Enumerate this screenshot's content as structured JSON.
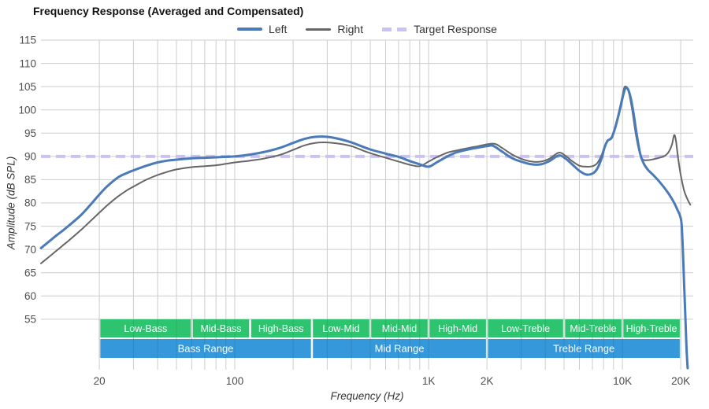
{
  "title": "Frequency Response (Averaged and Compensated)",
  "legend": {
    "items": [
      {
        "label": "Left",
        "color": "#4a7ab7",
        "style": "solid"
      },
      {
        "label": "Right",
        "color": "#666666",
        "style": "solid"
      },
      {
        "label": "Target Response",
        "color": "#c9c2f2",
        "style": "dashed"
      }
    ]
  },
  "chart_data": {
    "type": "line",
    "title": "Frequency Response (Averaged and Compensated)",
    "xlabel": "Frequency (Hz)",
    "ylabel": "Amplitude (dB SPL)",
    "x_scale": "log",
    "x_range": [
      10,
      23200
    ],
    "y_range": [
      45,
      115
    ],
    "grid": true,
    "legend_position": "top-center",
    "colors": {
      "gridline": "#cccccc",
      "tick_text": "#4d4d4d",
      "band_text": "#ffffff",
      "sub_band": "#2ec46f",
      "main_band": "#3498db",
      "target": "#c9c2f2",
      "left": "#4a7ab7",
      "right": "#666666"
    },
    "y_ticks": [
      55,
      60,
      65,
      70,
      75,
      80,
      85,
      90,
      95,
      100,
      105,
      110,
      115
    ],
    "x_ticks": [
      {
        "f": 20,
        "label": "20"
      },
      {
        "f": 100,
        "label": "100"
      },
      {
        "f": 1000,
        "label": "1K"
      },
      {
        "f": 2000,
        "label": "2K"
      },
      {
        "f": 10000,
        "label": "10K"
      },
      {
        "f": 20000,
        "label": "20K"
      }
    ],
    "x_gridlines": [
      20,
      30,
      40,
      50,
      60,
      70,
      80,
      90,
      100,
      200,
      300,
      400,
      500,
      600,
      700,
      800,
      900,
      1000,
      2000,
      3000,
      4000,
      5000,
      6000,
      7000,
      8000,
      9000,
      10000,
      20000
    ],
    "target_response_db": 90,
    "series": [
      {
        "name": "Right",
        "color": "#666666",
        "width": 2,
        "points": [
          [
            10,
            67.0
          ],
          [
            11,
            68.4
          ],
          [
            12,
            69.7
          ],
          [
            13,
            70.9
          ],
          [
            14,
            72.0
          ],
          [
            16,
            74.1
          ],
          [
            18,
            76.1
          ],
          [
            20,
            77.9
          ],
          [
            22,
            79.5
          ],
          [
            25,
            81.4
          ],
          [
            28,
            82.8
          ],
          [
            30,
            83.5
          ],
          [
            35,
            85.0
          ],
          [
            40,
            86.0
          ],
          [
            45,
            86.7
          ],
          [
            50,
            87.2
          ],
          [
            60,
            87.7
          ],
          [
            70,
            87.9
          ],
          [
            80,
            88.1
          ],
          [
            90,
            88.4
          ],
          [
            100,
            88.7
          ],
          [
            120,
            89.1
          ],
          [
            140,
            89.5
          ],
          [
            170,
            90.3
          ],
          [
            200,
            91.4
          ],
          [
            230,
            92.4
          ],
          [
            260,
            92.9
          ],
          [
            300,
            93.0
          ],
          [
            350,
            92.7
          ],
          [
            400,
            92.2
          ],
          [
            450,
            91.4
          ],
          [
            500,
            90.7
          ],
          [
            600,
            89.7
          ],
          [
            700,
            88.9
          ],
          [
            800,
            88.2
          ],
          [
            900,
            87.9
          ],
          [
            1000,
            88.9
          ],
          [
            1100,
            89.8
          ],
          [
            1250,
            90.8
          ],
          [
            1400,
            91.3
          ],
          [
            1600,
            91.8
          ],
          [
            1800,
            92.2
          ],
          [
            2000,
            92.6
          ],
          [
            2200,
            92.7
          ],
          [
            2400,
            91.8
          ],
          [
            2700,
            90.4
          ],
          [
            3000,
            89.5
          ],
          [
            3400,
            88.9
          ],
          [
            3800,
            88.9
          ],
          [
            4200,
            89.5
          ],
          [
            4700,
            90.8
          ],
          [
            5100,
            90.1
          ],
          [
            5500,
            89.0
          ],
          [
            6000,
            88.0
          ],
          [
            6500,
            87.8
          ],
          [
            7000,
            87.9
          ],
          [
            7400,
            88.5
          ],
          [
            7800,
            90.2
          ],
          [
            8100,
            92.2
          ],
          [
            8400,
            93.4
          ],
          [
            8800,
            94.2
          ],
          [
            9200,
            96.6
          ],
          [
            9700,
            100.5
          ],
          [
            10100,
            103.8
          ],
          [
            10300,
            105.0
          ],
          [
            10700,
            104.3
          ],
          [
            11200,
            100.3
          ],
          [
            11700,
            95.0
          ],
          [
            12200,
            91.2
          ],
          [
            12700,
            89.4
          ],
          [
            13500,
            89.2
          ],
          [
            14500,
            89.4
          ],
          [
            15500,
            89.7
          ],
          [
            16500,
            90.1
          ],
          [
            17300,
            90.9
          ],
          [
            18000,
            92.5
          ],
          [
            18500,
            94.6
          ],
          [
            18900,
            93.3
          ],
          [
            19400,
            89.5
          ],
          [
            20000,
            86.0
          ],
          [
            20800,
            82.7
          ],
          [
            21600,
            80.9
          ],
          [
            22400,
            79.6
          ]
        ]
      },
      {
        "name": "Left",
        "color": "#4a7ab7",
        "width": 3,
        "points": [
          [
            10,
            70.3
          ],
          [
            11,
            71.7
          ],
          [
            12,
            73.0
          ],
          [
            13,
            74.1
          ],
          [
            14,
            75.2
          ],
          [
            16,
            77.3
          ],
          [
            18,
            79.6
          ],
          [
            20,
            81.8
          ],
          [
            22,
            83.6
          ],
          [
            25,
            85.5
          ],
          [
            28,
            86.5
          ],
          [
            30,
            87.0
          ],
          [
            35,
            88.0
          ],
          [
            40,
            88.7
          ],
          [
            45,
            89.1
          ],
          [
            50,
            89.3
          ],
          [
            60,
            89.6
          ],
          [
            70,
            89.7
          ],
          [
            80,
            89.8
          ],
          [
            90,
            89.9
          ],
          [
            100,
            90.0
          ],
          [
            120,
            90.4
          ],
          [
            140,
            90.9
          ],
          [
            170,
            91.8
          ],
          [
            200,
            92.9
          ],
          [
            230,
            93.8
          ],
          [
            260,
            94.2
          ],
          [
            300,
            94.2
          ],
          [
            350,
            93.7
          ],
          [
            400,
            93.0
          ],
          [
            450,
            92.2
          ],
          [
            500,
            91.5
          ],
          [
            600,
            90.6
          ],
          [
            700,
            89.9
          ],
          [
            800,
            89.0
          ],
          [
            900,
            88.3
          ],
          [
            1000,
            87.8
          ],
          [
            1100,
            88.7
          ],
          [
            1250,
            90.0
          ],
          [
            1400,
            90.9
          ],
          [
            1600,
            91.5
          ],
          [
            1800,
            91.9
          ],
          [
            2000,
            92.2
          ],
          [
            2150,
            92.3
          ],
          [
            2400,
            91.0
          ],
          [
            2700,
            89.6
          ],
          [
            3000,
            88.9
          ],
          [
            3400,
            88.3
          ],
          [
            3800,
            88.3
          ],
          [
            4200,
            89.0
          ],
          [
            4700,
            90.2
          ],
          [
            5100,
            89.5
          ],
          [
            5500,
            88.3
          ],
          [
            6000,
            86.9
          ],
          [
            6500,
            86.1
          ],
          [
            7000,
            86.3
          ],
          [
            7400,
            87.3
          ],
          [
            7800,
            89.5
          ],
          [
            8100,
            92.0
          ],
          [
            8400,
            93.4
          ],
          [
            8800,
            94.0
          ],
          [
            9200,
            96.3
          ],
          [
            9700,
            100.0
          ],
          [
            10100,
            103.2
          ],
          [
            10400,
            104.7
          ],
          [
            10800,
            104.0
          ],
          [
            11300,
            100.4
          ],
          [
            11800,
            95.2
          ],
          [
            12300,
            90.9
          ],
          [
            12800,
            88.7
          ],
          [
            13500,
            87.2
          ],
          [
            14500,
            85.9
          ],
          [
            15500,
            84.6
          ],
          [
            16500,
            83.2
          ],
          [
            17500,
            81.7
          ],
          [
            18500,
            80.0
          ],
          [
            19300,
            78.4
          ],
          [
            19800,
            77.3
          ],
          [
            20200,
            75.5
          ],
          [
            20500,
            70.0
          ],
          [
            20800,
            63.0
          ],
          [
            21100,
            56.0
          ],
          [
            21400,
            49.0
          ],
          [
            21700,
            44.5
          ]
        ]
      }
    ],
    "bands": {
      "sub": [
        {
          "label": "Low-Bass",
          "from": 20,
          "to": 60
        },
        {
          "label": "Mid-Bass",
          "from": 60,
          "to": 120
        },
        {
          "label": "High-Bass",
          "from": 120,
          "to": 250
        },
        {
          "label": "Low-Mid",
          "from": 250,
          "to": 500
        },
        {
          "label": "Mid-Mid",
          "from": 500,
          "to": 1000
        },
        {
          "label": "High-Mid",
          "from": 1000,
          "to": 2000
        },
        {
          "label": "Low-Treble",
          "from": 2000,
          "to": 5000
        },
        {
          "label": "Mid-Treble",
          "from": 5000,
          "to": 10000
        },
        {
          "label": "High-Treble",
          "from": 10000,
          "to": 20000
        }
      ],
      "main": [
        {
          "label": "Bass Range",
          "from": 20,
          "to": 250
        },
        {
          "label": "Mid Range",
          "from": 250,
          "to": 2000
        },
        {
          "label": "Treble Range",
          "from": 2000,
          "to": 20000
        }
      ]
    }
  }
}
